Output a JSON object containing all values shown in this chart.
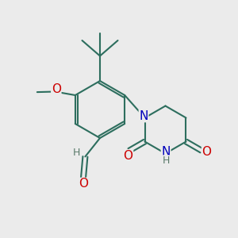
{
  "bg_color": "#ebebeb",
  "bond_color": "#2d6e5e",
  "bond_width": 1.5,
  "atom_colors": {
    "O": "#cc0000",
    "N": "#0000bb",
    "H": "#5a7a6a",
    "C": "#2d6e5e"
  },
  "font_size": 10
}
